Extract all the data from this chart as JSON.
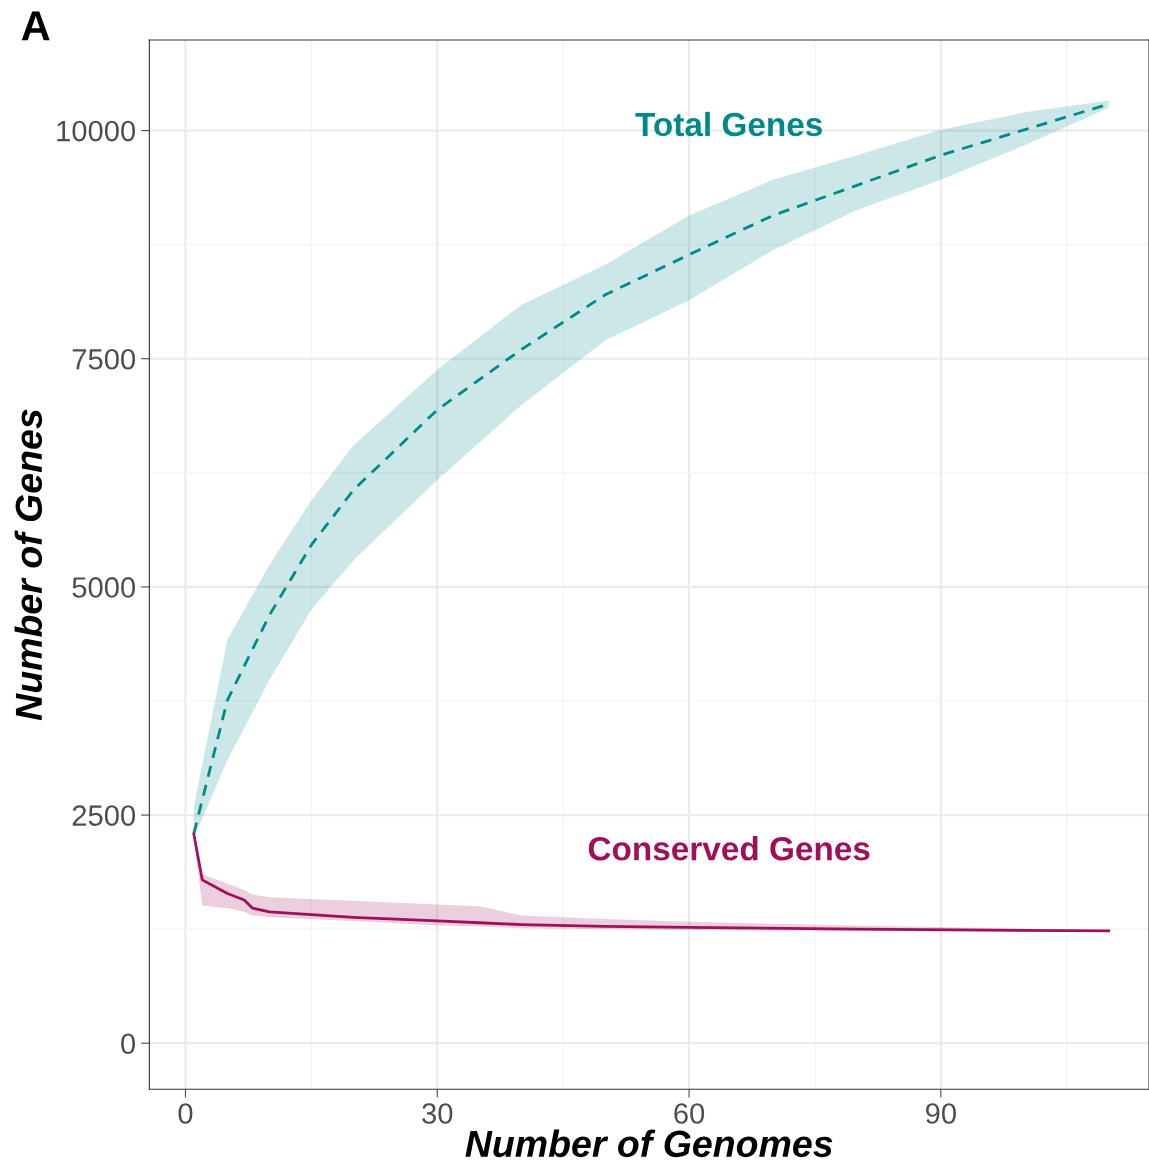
{
  "chart_data": {
    "type": "line",
    "xlabel": "Number of Genomes",
    "ylabel": "Number of Genes",
    "annotations": [
      "A"
    ],
    "xlim": [
      -4.3,
      114.8
    ],
    "ylim": [
      -504,
      10993
    ],
    "xticks": [
      0,
      30,
      60,
      90
    ],
    "yticks": [
      0,
      2500,
      5000,
      7500,
      10000
    ],
    "grid": true,
    "legend": false,
    "marker": "none",
    "series": [
      {
        "name": "Total Genes",
        "color": "#00898a",
        "line_style": "dashed",
        "x": [
          1,
          5,
          10,
          15,
          20,
          30,
          40,
          50,
          60,
          70,
          80,
          90,
          100,
          110
        ],
        "values": [
          2300,
          3760,
          4690,
          5460,
          6060,
          6940,
          7600,
          8200,
          8640,
          9070,
          9400,
          9730,
          10010,
          10290
        ],
        "lower": [
          2250,
          3100,
          3980,
          4750,
          5290,
          6170,
          6990,
          7700,
          8140,
          8690,
          9130,
          9460,
          9840,
          10250
        ],
        "upper": [
          2600,
          4420,
          5240,
          5950,
          6550,
          7380,
          8090,
          8530,
          9070,
          9460,
          9730,
          10010,
          10200,
          10330
        ]
      },
      {
        "name": "Conserved Genes",
        "color": "#a0105a",
        "line_style": "solid",
        "x": [
          1,
          2,
          5,
          7,
          8,
          10,
          20,
          30,
          35,
          40,
          50,
          60,
          80,
          110
        ],
        "values": [
          2290,
          1790,
          1640,
          1570,
          1480,
          1440,
          1380,
          1340,
          1320,
          1300,
          1280,
          1270,
          1250,
          1230
        ],
        "lower": [
          2250,
          1510,
          1480,
          1440,
          1400,
          1380,
          1340,
          1290,
          1280,
          1260,
          1250,
          1240,
          1230,
          1220
        ],
        "upper": [
          2300,
          1850,
          1750,
          1680,
          1630,
          1600,
          1560,
          1520,
          1500,
          1400,
          1360,
          1330,
          1290,
          1240
        ]
      }
    ]
  }
}
